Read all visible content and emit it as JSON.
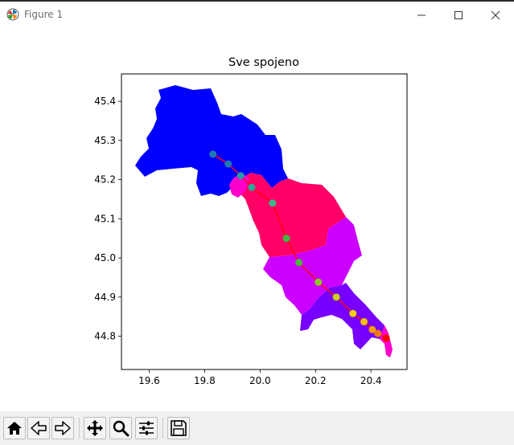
{
  "window": {
    "title": "Figure 1",
    "icon": "matplotlib-icon",
    "controls": [
      "minimize-icon",
      "maximize-icon",
      "close-icon"
    ]
  },
  "toolbar": {
    "buttons": [
      {
        "icon": "home-icon",
        "label": "Home"
      },
      {
        "icon": "back-arrow-icon",
        "label": "Back"
      },
      {
        "icon": "forward-arrow-icon",
        "label": "Forward"
      },
      {
        "icon": "move-icon",
        "label": "Pan"
      },
      {
        "icon": "zoom-icon",
        "label": "Zoom"
      },
      {
        "icon": "sliders-icon",
        "label": "Configure subplots"
      },
      {
        "icon": "save-icon",
        "label": "Save"
      }
    ]
  },
  "chart_data": {
    "type": "map",
    "title": "Sve spojeno",
    "xlabel": "",
    "ylabel": "",
    "xlim": [
      19.5,
      20.53
    ],
    "ylim": [
      44.715,
      45.47
    ],
    "xticks": [
      "19.6",
      "19.8",
      "20.0",
      "20.2",
      "20.4"
    ],
    "yticks": [
      "44.8",
      "44.9",
      "45.0",
      "45.1",
      "45.2",
      "45.3",
      "45.4"
    ],
    "regions": [
      {
        "color": "#0000ff"
      },
      {
        "color": "#ff0066"
      },
      {
        "color": "#cc00ff"
      },
      {
        "color": "#7700ff"
      },
      {
        "color": "#ff00cc"
      }
    ],
    "route": {
      "line_color": "#ff0000",
      "points": [
        {
          "x": 19.83,
          "y": 45.265,
          "color": "#1f77b4"
        },
        {
          "x": 19.885,
          "y": 45.24,
          "color": "#1f77b4"
        },
        {
          "x": 19.93,
          "y": 45.21,
          "color": "#1f9aa8"
        },
        {
          "x": 19.97,
          "y": 45.18,
          "color": "#2aa89a"
        },
        {
          "x": 20.045,
          "y": 45.14,
          "color": "#3ab58a"
        },
        {
          "x": 20.095,
          "y": 45.05,
          "color": "#3db83f"
        },
        {
          "x": 20.14,
          "y": 44.988,
          "color": "#48b83a"
        },
        {
          "x": 20.21,
          "y": 44.938,
          "color": "#8bc820"
        },
        {
          "x": 20.275,
          "y": 44.9,
          "color": "#c8d010"
        },
        {
          "x": 20.335,
          "y": 44.858,
          "color": "#ecd000"
        },
        {
          "x": 20.375,
          "y": 44.837,
          "color": "#f5c000"
        },
        {
          "x": 20.405,
          "y": 44.817,
          "color": "#f39c12"
        },
        {
          "x": 20.425,
          "y": 44.807,
          "color": "#f07a10"
        },
        {
          "x": 20.455,
          "y": 44.795,
          "color": "#ff0000"
        }
      ]
    }
  }
}
